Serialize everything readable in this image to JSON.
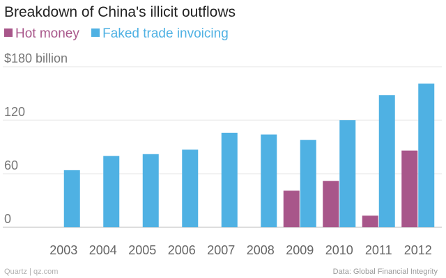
{
  "chart_data": {
    "type": "bar",
    "title": "Breakdown of China's illicit outflows",
    "categories": [
      "2003",
      "2004",
      "2005",
      "2006",
      "2007",
      "2008",
      "2009",
      "2010",
      "2011",
      "2012"
    ],
    "series": [
      {
        "name": "Hot money",
        "color": "#a8568a",
        "values": [
          0,
          0,
          0,
          0,
          0,
          0,
          41,
          52,
          13,
          86
        ]
      },
      {
        "name": "Faked trade invoicing",
        "color": "#4fb1e3",
        "values": [
          64,
          80,
          82,
          87,
          106,
          104,
          98,
          120,
          148,
          161
        ]
      }
    ],
    "y_ticks": [
      {
        "value": 0,
        "label": "0"
      },
      {
        "value": 60,
        "label": "60"
      },
      {
        "value": 120,
        "label": "120"
      },
      {
        "value": 180,
        "label": "$180 billion"
      }
    ],
    "ylim": [
      0,
      180
    ],
    "xlabel": "",
    "ylabel": "",
    "grid": true,
    "legend_position": "top-left"
  },
  "source": "Data: Global Financial Integrity",
  "credit": "Quartz | qz.com"
}
